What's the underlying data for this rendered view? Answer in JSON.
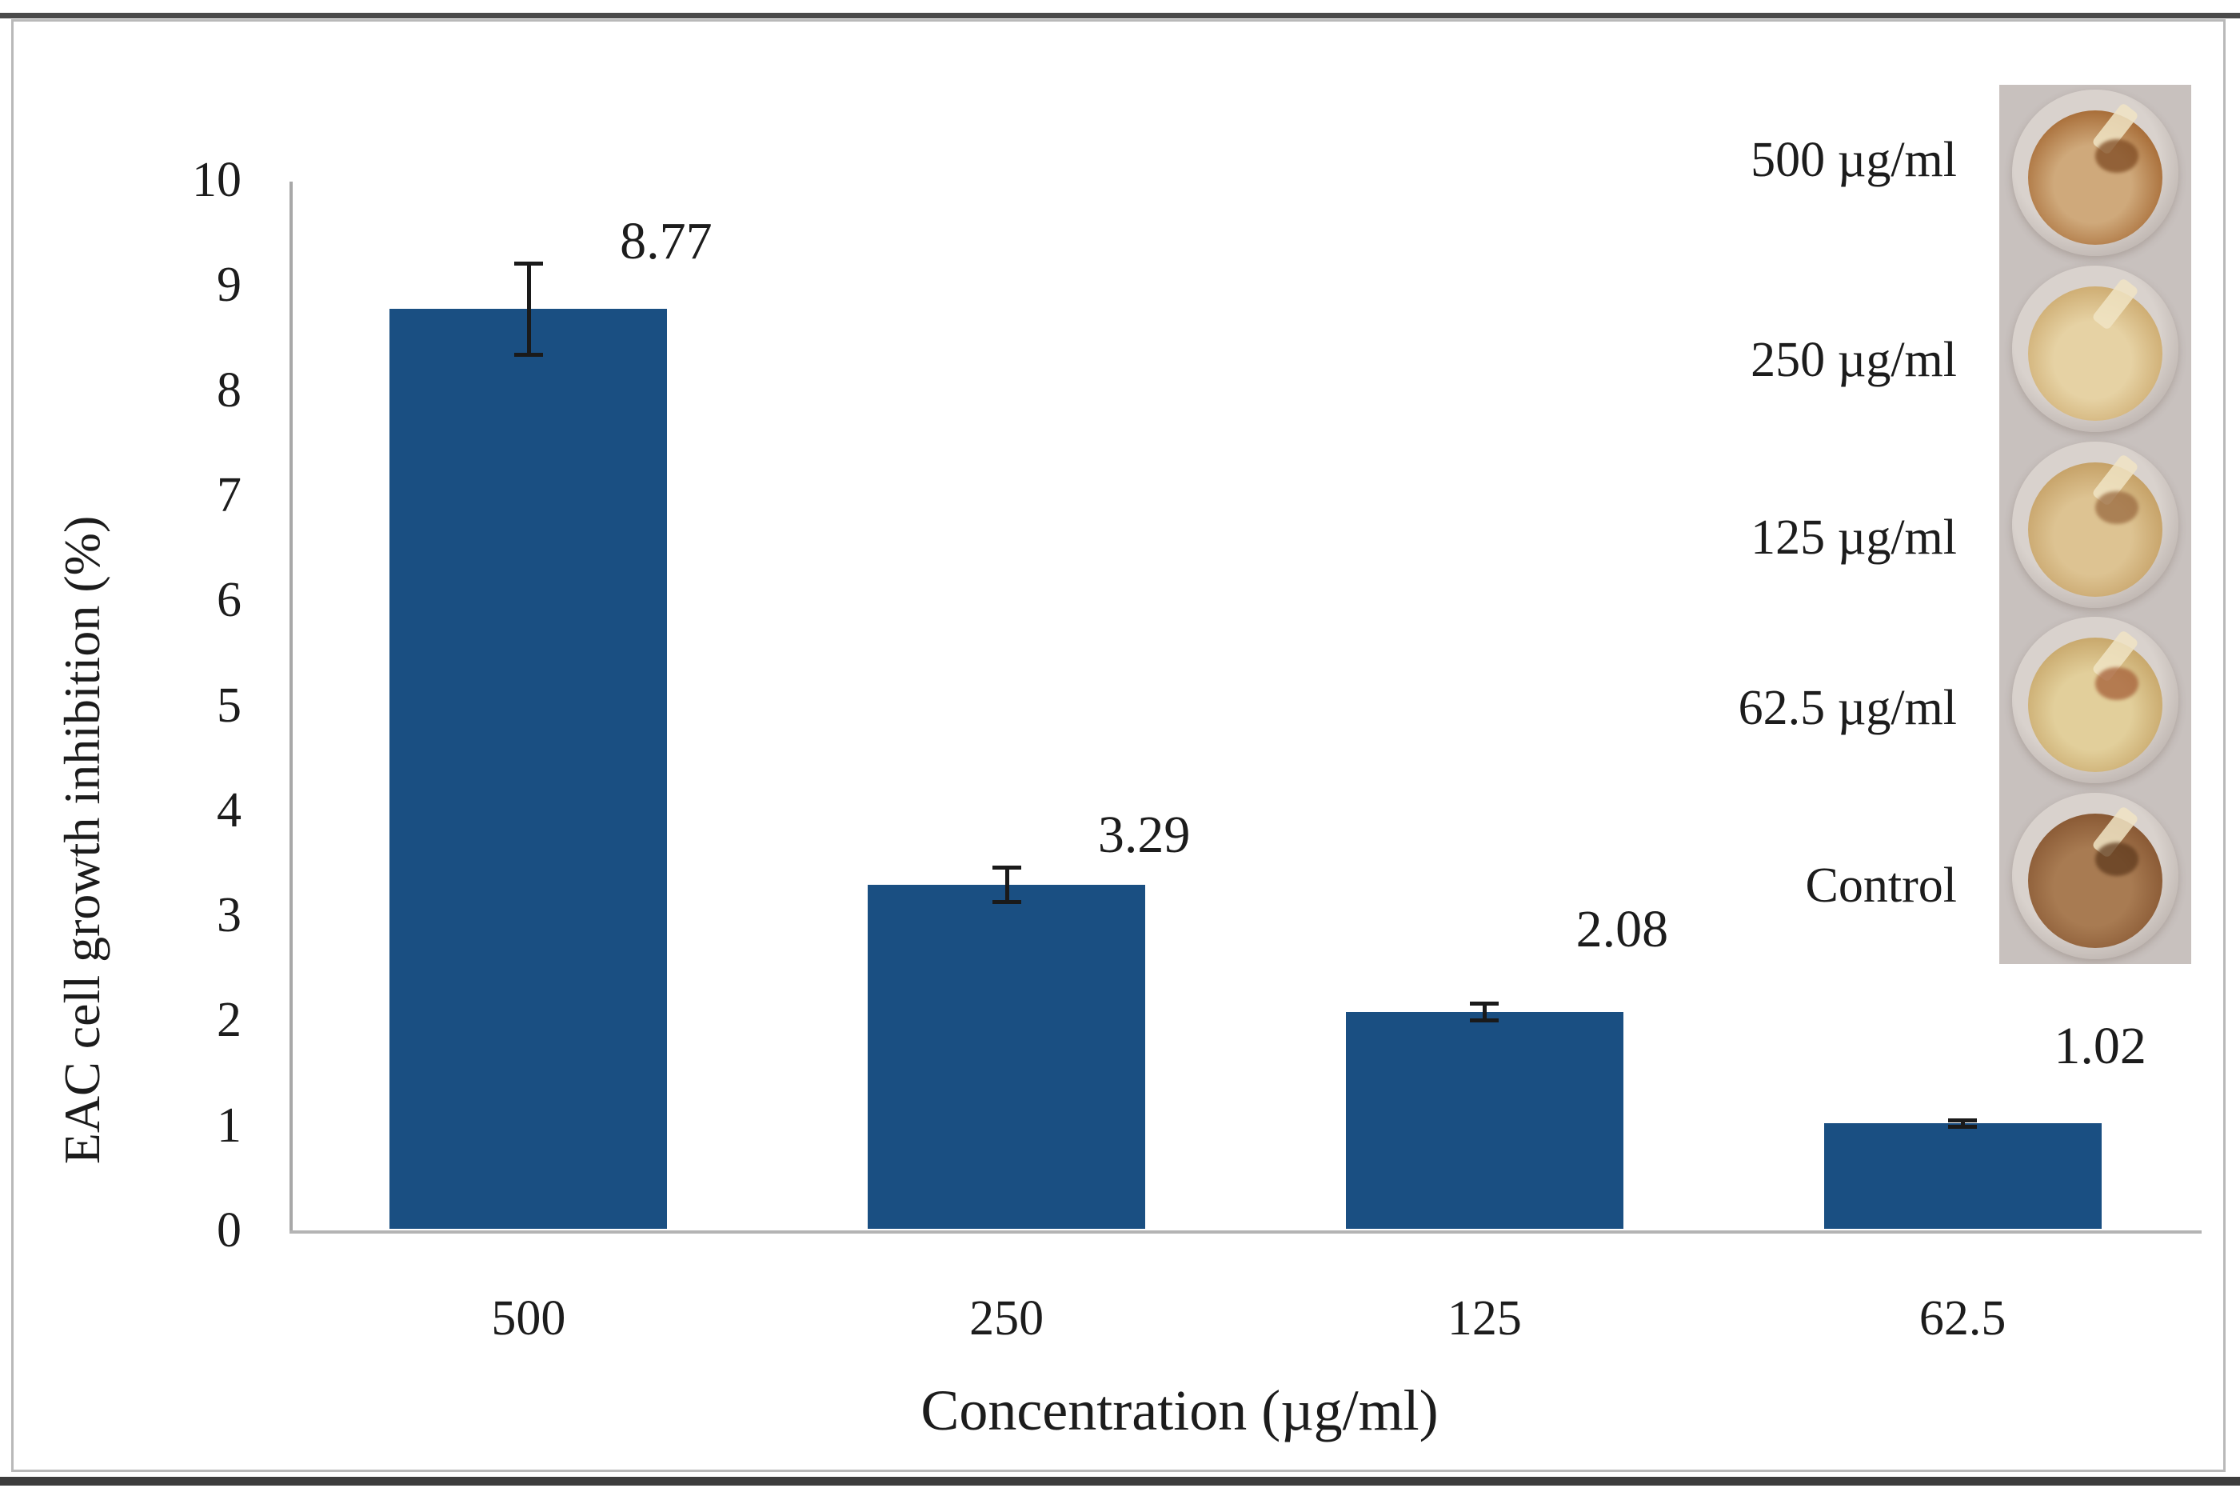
{
  "figure": {
    "frame_border_color": "#b9b9b9",
    "rule_color": "#424242",
    "background": "#ffffff"
  },
  "chart_data": {
    "type": "bar",
    "title": "",
    "categories": [
      "500",
      "250",
      "125",
      "62.5"
    ],
    "values": [
      8.77,
      3.29,
      2.08,
      1.02
    ],
    "errors": [
      0.45,
      0.18,
      0.1,
      0.05
    ],
    "value_labels": [
      "8.77",
      "3.29",
      "2.08",
      "1.02"
    ],
    "xlabel": "Concentration (µg/ml)",
    "ylabel": "EAC cell growth inhibition (%)",
    "ylim": [
      0,
      10
    ],
    "yticks": [
      0,
      1,
      2,
      3,
      4,
      5,
      6,
      7,
      8,
      9,
      10
    ],
    "grid": false,
    "legend": null,
    "bar_color": "#1a4f82",
    "axis_color": "#a8a8a8",
    "error_color": "#1a1a1a",
    "text_color": "#1c1c1c"
  },
  "inset": {
    "labels": [
      "500 µg/ml",
      "250 µg/ml",
      "125 µg/ml",
      "62.5 µg/ml",
      "Control"
    ],
    "strip_background": "#c8c1be",
    "well_rim_color": "#d9d2cd",
    "wells": [
      {
        "name": "well-500",
        "center": "#cfa97b",
        "ring": "#a96f3a",
        "edge": "#8a5526",
        "spot": "#7e4a22"
      },
      {
        "name": "well-250",
        "center": "#e6d2a4",
        "ring": "#cfae74",
        "edge": "#b08d55",
        "spot": ""
      },
      {
        "name": "well-125",
        "center": "#ddc392",
        "ring": "#c6a268",
        "edge": "#a9834c",
        "spot": "#9a6a40"
      },
      {
        "name": "well-62.5",
        "center": "#e2cf9b",
        "ring": "#c9a96d",
        "edge": "#ad8850",
        "spot": "#a55f38"
      },
      {
        "name": "well-control",
        "center": "#a87b52",
        "ring": "#8a5a35",
        "edge": "#6e4423",
        "spot": "#5f3a1d"
      }
    ]
  }
}
